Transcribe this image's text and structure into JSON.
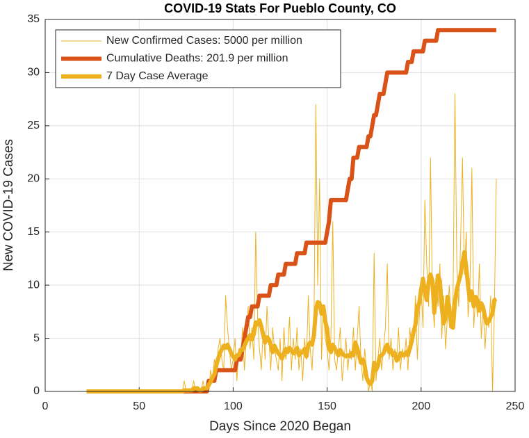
{
  "chart_data": {
    "type": "line",
    "title": "COVID-19 Stats For Pueblo County, CO",
    "xlabel": "Days Since 2020 Began",
    "ylabel": "New COVID-19 Cases",
    "xlim": [
      0,
      250
    ],
    "xticks": [
      0,
      50,
      100,
      150,
      200,
      250
    ],
    "ylim": [
      0,
      35
    ],
    "yticks": [
      0,
      5,
      10,
      15,
      20,
      25,
      30,
      35
    ],
    "grid": true,
    "legend": "northwest",
    "x": [
      22,
      23,
      24,
      25,
      26,
      27,
      28,
      29,
      30,
      31,
      32,
      33,
      34,
      35,
      36,
      37,
      38,
      39,
      40,
      41,
      42,
      43,
      44,
      45,
      46,
      47,
      48,
      49,
      50,
      51,
      52,
      53,
      54,
      55,
      56,
      57,
      58,
      59,
      60,
      61,
      62,
      63,
      64,
      65,
      66,
      67,
      68,
      69,
      70,
      71,
      72,
      73,
      74,
      75,
      76,
      77,
      78,
      79,
      80,
      81,
      82,
      83,
      84,
      85,
      86,
      87,
      88,
      89,
      90,
      91,
      92,
      93,
      94,
      95,
      96,
      97,
      98,
      99,
      100,
      101,
      102,
      103,
      104,
      105,
      106,
      107,
      108,
      109,
      110,
      111,
      112,
      113,
      114,
      115,
      116,
      117,
      118,
      119,
      120,
      121,
      122,
      123,
      124,
      125,
      126,
      127,
      128,
      129,
      130,
      131,
      132,
      133,
      134,
      135,
      136,
      137,
      138,
      139,
      140,
      141,
      142,
      143,
      144,
      145,
      146,
      147,
      148,
      149,
      150,
      151,
      152,
      153,
      154,
      155,
      156,
      157,
      158,
      159,
      160,
      161,
      162,
      163,
      164,
      165,
      166,
      167,
      168,
      169,
      170,
      171,
      172,
      173,
      174,
      175,
      176,
      177,
      178,
      179,
      180,
      181,
      182,
      183,
      184,
      185,
      186,
      187,
      188,
      189,
      190,
      191,
      192,
      193,
      194,
      195,
      196,
      197,
      198,
      199,
      200,
      201,
      202,
      203,
      204,
      205,
      206,
      207,
      208,
      209,
      210,
      211,
      212,
      213,
      214,
      215,
      216,
      217,
      218,
      219,
      220,
      221,
      222,
      223,
      224,
      225,
      226,
      227,
      228,
      229,
      230,
      231,
      232,
      233,
      234,
      235,
      236,
      237,
      238,
      239,
      240
    ],
    "series": [
      {
        "name": "New Confirmed Cases: 5000 per million",
        "color": "#EDB120",
        "values": [
          0,
          0,
          0,
          0,
          0,
          0,
          0,
          0,
          0,
          0,
          0,
          0,
          0,
          0,
          0,
          0,
          0,
          0,
          0,
          0,
          0,
          0,
          0,
          0,
          0,
          0,
          0,
          0,
          0,
          0,
          0,
          0,
          0,
          0,
          0,
          0,
          0,
          0,
          0,
          0,
          0,
          0,
          0,
          0,
          0,
          0,
          0,
          0,
          0,
          0,
          0,
          0,
          1,
          0,
          0,
          0,
          0,
          1,
          0,
          0,
          0,
          0,
          1,
          0,
          0,
          0,
          2,
          1,
          3,
          2,
          4,
          5,
          3,
          2,
          9,
          6,
          4,
          2,
          3,
          5,
          1,
          4,
          3,
          6,
          2,
          5,
          8,
          4,
          6,
          3,
          15,
          7,
          4,
          2,
          6,
          3,
          8,
          5,
          2,
          6,
          4,
          3,
          2,
          5,
          1,
          6,
          3,
          4,
          7,
          2,
          5,
          3,
          6,
          2,
          4,
          1,
          5,
          3,
          9,
          4,
          2,
          6,
          27,
          10,
          20,
          3,
          8,
          5,
          4,
          2,
          5,
          16,
          3,
          2,
          4,
          6,
          1,
          3,
          5,
          2,
          4,
          3,
          6,
          2,
          5,
          8,
          3,
          1,
          4,
          2,
          0,
          1,
          0,
          13,
          1,
          3,
          5,
          2,
          4,
          6,
          12,
          3,
          5,
          2,
          4,
          3,
          6,
          2,
          4,
          3,
          5,
          2,
          6,
          4,
          5,
          9,
          3,
          7,
          10,
          6,
          18,
          12,
          8,
          22,
          9,
          6,
          11,
          8,
          12,
          5,
          9,
          4,
          7,
          10,
          6,
          9,
          28,
          12,
          8,
          14,
          22,
          11,
          15,
          7,
          10,
          21,
          6,
          9,
          7,
          12,
          5,
          8,
          4,
          7,
          6,
          9,
          0,
          8,
          20
        ]
      },
      {
        "name": "Cumulative Deaths: 201.9 per million",
        "color": "#D95319",
        "values": [
          0,
          0,
          0,
          0,
          0,
          0,
          0,
          0,
          0,
          0,
          0,
          0,
          0,
          0,
          0,
          0,
          0,
          0,
          0,
          0,
          0,
          0,
          0,
          0,
          0,
          0,
          0,
          0,
          0,
          0,
          0,
          0,
          0,
          0,
          0,
          0,
          0,
          0,
          0,
          0,
          0,
          0,
          0,
          0,
          0,
          0,
          0,
          0,
          0,
          0,
          0,
          0,
          0,
          0,
          0,
          0,
          0,
          0,
          0,
          0,
          0,
          0,
          0,
          0,
          0,
          1,
          1,
          1,
          1,
          2,
          2,
          2,
          2,
          2,
          2,
          2,
          2,
          2,
          2,
          2,
          3,
          3,
          3,
          4,
          5,
          6,
          7,
          7,
          8,
          8,
          8,
          8,
          9,
          9,
          9,
          9,
          9,
          9,
          10,
          10,
          10,
          10,
          11,
          11,
          11,
          11,
          12,
          12,
          12,
          12,
          12,
          12,
          13,
          13,
          13,
          13,
          13,
          14,
          14,
          14,
          14,
          14,
          14,
          14,
          14,
          14,
          14,
          14,
          15,
          16,
          18,
          18,
          18,
          18,
          18,
          18,
          18,
          18,
          18,
          19,
          20,
          20,
          22,
          22,
          22,
          23,
          23,
          23,
          23,
          23,
          24,
          24,
          25,
          26,
          26,
          27,
          28,
          28,
          28,
          29,
          30,
          30,
          30,
          30,
          30,
          30,
          30,
          30,
          30,
          30,
          30,
          31,
          31,
          31,
          32,
          32,
          32,
          32,
          32,
          32,
          33,
          33,
          33,
          33,
          33,
          33,
          33,
          34,
          34,
          34,
          34,
          34,
          34,
          34,
          34,
          34,
          34,
          34,
          34,
          34,
          34,
          34,
          34,
          34,
          34,
          34,
          34,
          34,
          34,
          34,
          34,
          34,
          34,
          34,
          34,
          34,
          34,
          34,
          34
        ]
      },
      {
        "name": "7 Day Case Average",
        "color": "#EDB120",
        "values": [
          0,
          0,
          0,
          0,
          0,
          0,
          0,
          0,
          0,
          0,
          0,
          0,
          0,
          0,
          0,
          0,
          0,
          0,
          0,
          0,
          0,
          0,
          0,
          0,
          0,
          0,
          0,
          0,
          0,
          0,
          0,
          0,
          0,
          0,
          0,
          0,
          0,
          0,
          0,
          0,
          0,
          0,
          0,
          0,
          0,
          0,
          0,
          0,
          0,
          0,
          0,
          0,
          0.1,
          0.1,
          0.1,
          0.1,
          0.1,
          0.3,
          0.3,
          0.3,
          0.1,
          0.1,
          0.3,
          0.3,
          0.3,
          0.6,
          0.9,
          1.3,
          1.6,
          2.4,
          3.1,
          3.6,
          4.0,
          4.3,
          4.1,
          4.4,
          4.0,
          3.6,
          3.3,
          3.0,
          3.4,
          3.4,
          3.9,
          3.9,
          4.3,
          4.7,
          5.0,
          5.3,
          4.9,
          5.4,
          6.5,
          6.3,
          6.7,
          6.1,
          5.3,
          4.6,
          5.1,
          4.9,
          4.4,
          3.7,
          4.3,
          3.9,
          3.6,
          3.4,
          3.1,
          3.6,
          4.0,
          3.7,
          4.1,
          3.9,
          3.6,
          3.7,
          4.1,
          3.4,
          3.6,
          3.7,
          4.0,
          3.3,
          4.4,
          4.6,
          4.4,
          5.3,
          7.7,
          8.4,
          8.3,
          7.3,
          8.0,
          6.6,
          5.9,
          4.1,
          3.7,
          4.4,
          4.1,
          3.7,
          3.4,
          3.9,
          3.6,
          3.4,
          3.3,
          3.4,
          3.3,
          3.6,
          3.4,
          4.6,
          4.1,
          3.4,
          2.7,
          3.0,
          2.4,
          1.3,
          0.9,
          0.7,
          1.0,
          2.7,
          2.0,
          2.4,
          3.3,
          3.4,
          3.6,
          4.1,
          4.4,
          3.7,
          3.9,
          3.4,
          3.6,
          2.9,
          3.1,
          3.6,
          3.4,
          3.4,
          3.7,
          3.4,
          4.1,
          4.7,
          5.6,
          6.3,
          7.9,
          8.3,
          9.6,
          10.6,
          9.4,
          8.6,
          10.3,
          11.0,
          10.4,
          7.4,
          9.4,
          10.9,
          10.4,
          7.9,
          6.4,
          6.9,
          8.9,
          7.9,
          6.1,
          6.0,
          8.4,
          9.6,
          10.3,
          11.0,
          12.1,
          13.1,
          11.7,
          9.9,
          8.6,
          9.4,
          8.0,
          8.9,
          8.6,
          7.6,
          8.3,
          7.9,
          7.0,
          6.4,
          6.6,
          7.0,
          7.4,
          8.6,
          8.7
        ]
      }
    ]
  }
}
